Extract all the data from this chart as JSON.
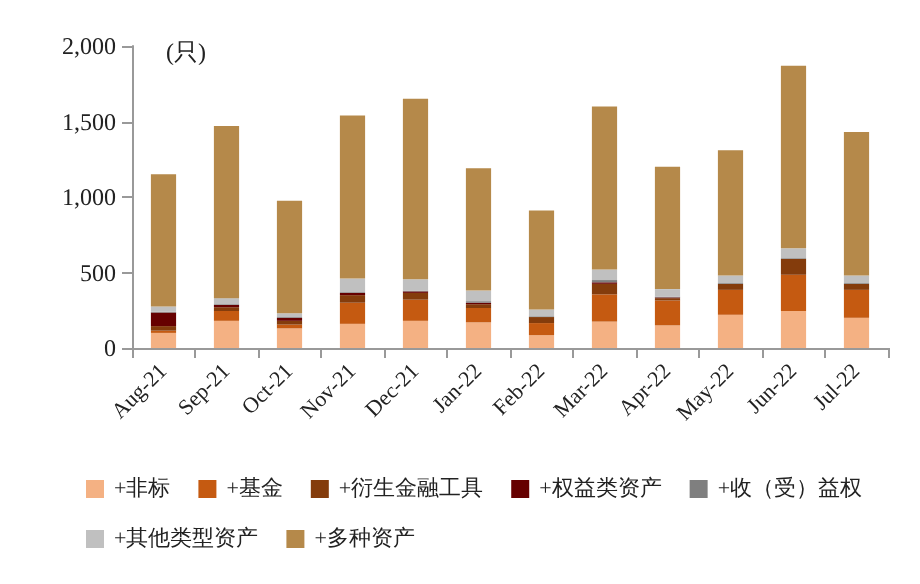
{
  "chart_data": {
    "type": "bar",
    "stacked": true,
    "categories": [
      "Aug-21",
      "Sep-21",
      "Oct-21",
      "Nov-21",
      "Dec-21",
      "Jan-22",
      "Feb-22",
      "Mar-22",
      "Apr-22",
      "May-22",
      "Jun-22",
      "Jul-22"
    ],
    "series": [
      {
        "name": "+非标",
        "color": "#f4b183",
        "values": [
          100,
          180,
          130,
          160,
          180,
          170,
          85,
          175,
          150,
          220,
          245,
          200
        ]
      },
      {
        "name": "+基金",
        "color": "#c55a11",
        "values": [
          15,
          65,
          25,
          140,
          140,
          95,
          80,
          180,
          165,
          165,
          240,
          185
        ]
      },
      {
        "name": "+衍生金融工具",
        "color": "#843c0c",
        "values": [
          30,
          25,
          25,
          50,
          45,
          25,
          40,
          70,
          15,
          40,
          105,
          40
        ]
      },
      {
        "name": "+权益类资产",
        "color": "#660000",
        "values": [
          90,
          15,
          20,
          15,
          10,
          10,
          0,
          10,
          5,
          0,
          0,
          0
        ]
      },
      {
        "name": "+收（受）益权",
        "color": "#7f7f7f",
        "values": [
          5,
          5,
          5,
          5,
          5,
          10,
          5,
          15,
          5,
          5,
          5,
          5
        ]
      },
      {
        "name": "+其他类型资产",
        "color": "#c0c0c0",
        "values": [
          35,
          40,
          25,
          90,
          75,
          70,
          45,
          70,
          50,
          50,
          65,
          50
        ]
      },
      {
        "name": "+多种资产",
        "color": "#b5894a",
        "values": [
          875,
          1140,
          745,
          1080,
          1195,
          810,
          655,
          1080,
          810,
          830,
          1210,
          950
        ]
      }
    ],
    "ylim": [
      0,
      2000
    ],
    "yticks": [
      {
        "value": 0,
        "label": "0"
      },
      {
        "value": 500,
        "label": "500"
      },
      {
        "value": 1000,
        "label": "1,000"
      },
      {
        "value": 1500,
        "label": "1,500"
      },
      {
        "value": 2000,
        "label": "2,000"
      }
    ],
    "annotations": [
      "(只)"
    ],
    "legend": "bottom",
    "grid": false
  }
}
